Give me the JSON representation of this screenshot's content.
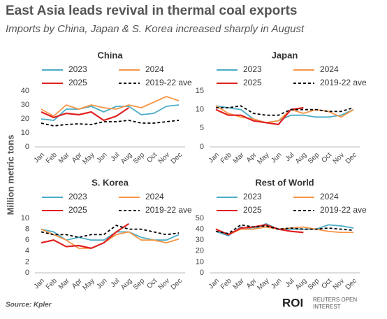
{
  "title": "East Asia leads revival in thermal coal exports",
  "subtitle": "Imports by China, Japan & S. Korea increased sharply in August",
  "ylabel": "Million metric tons",
  "source": "Source: Kpler",
  "logo": {
    "mark": "ROI",
    "line1": "REUTERS OPEN",
    "line2": "INTEREST"
  },
  "chart_data": [
    {
      "type": "line",
      "title": "China",
      "categories": [
        "Jan",
        "Feb",
        "Mar",
        "Apr",
        "May",
        "Jun",
        "Jul",
        "Aug",
        "Sep",
        "Oct",
        "Nov",
        "Dec"
      ],
      "ylim": [
        0,
        40
      ],
      "yticks": [
        0,
        10,
        20,
        30,
        40
      ],
      "grid": false,
      "series": [
        {
          "name": "2023",
          "color": "#4bacc6",
          "values": [
            20,
            19,
            27,
            27,
            29,
            25,
            29,
            29,
            23,
            24,
            29,
            30
          ]
        },
        {
          "name": "2024",
          "color": "#f79646",
          "values": [
            27,
            22,
            30,
            27,
            30,
            28,
            27,
            30,
            28,
            32,
            36,
            33
          ]
        },
        {
          "name": "2025",
          "color": "#e02020",
          "values": [
            25,
            21,
            24,
            23,
            25,
            19,
            22,
            28,
            null,
            null,
            null,
            null
          ]
        },
        {
          "name": "2019-22 ave",
          "color": "#000000",
          "dashed": true,
          "values": [
            17,
            15,
            16,
            16.5,
            16,
            18,
            18,
            19,
            17,
            17,
            18,
            19
          ]
        }
      ]
    },
    {
      "type": "line",
      "title": "Japan",
      "categories": [
        "Jan",
        "Feb",
        "Mar",
        "Apr",
        "May",
        "Jun",
        "Jul",
        "Aug",
        "Sep",
        "Oct",
        "Nov",
        "Dec"
      ],
      "ylim": [
        0,
        15
      ],
      "yticks": [
        0,
        5,
        10,
        15
      ],
      "grid": false,
      "series": [
        {
          "name": "2023",
          "color": "#4bacc6",
          "values": [
            11,
            10.5,
            10,
            7.5,
            6.5,
            7,
            8.5,
            8.5,
            8,
            8,
            8.5,
            10
          ]
        },
        {
          "name": "2024",
          "color": "#f79646",
          "values": [
            11,
            9,
            8,
            7.5,
            6.5,
            7,
            10,
            9,
            10,
            9.5,
            8,
            10
          ]
        },
        {
          "name": "2025",
          "color": "#e02020",
          "values": [
            10,
            8.5,
            8.5,
            7,
            6.5,
            6,
            10,
            10.5,
            null,
            null,
            null,
            null
          ]
        },
        {
          "name": "2019-22 ave",
          "color": "#000000",
          "dashed": true,
          "values": [
            10.5,
            10.5,
            11,
            9,
            8.5,
            8.5,
            10,
            10,
            10,
            9.5,
            9.5,
            10.5
          ]
        }
      ]
    },
    {
      "type": "line",
      "title": "S. Korea",
      "categories": [
        "Jan",
        "Feb",
        "Mar",
        "Apr",
        "May",
        "Jun",
        "Jul",
        "Aug",
        "Sep",
        "Oct",
        "Nov",
        "Dec"
      ],
      "ylim": [
        0,
        10
      ],
      "yticks": [
        0,
        2,
        4,
        6,
        8,
        10
      ],
      "grid": false,
      "series": [
        {
          "name": "2023",
          "color": "#4bacc6",
          "values": [
            8,
            7.5,
            6,
            6.5,
            6,
            6,
            7.5,
            7.5,
            6.5,
            6,
            6,
            7
          ]
        },
        {
          "name": "2024",
          "color": "#f79646",
          "values": [
            8,
            7,
            6,
            4.5,
            4.5,
            5.5,
            7,
            7.5,
            6,
            6,
            5.5,
            6.2
          ]
        },
        {
          "name": "2025",
          "color": "#e02020",
          "values": [
            5.5,
            6,
            4.8,
            5,
            4.5,
            5.5,
            7.5,
            9,
            null,
            null,
            null,
            null
          ]
        },
        {
          "name": "2019-22 ave",
          "color": "#000000",
          "dashed": true,
          "values": [
            7.5,
            7,
            7,
            6.5,
            7,
            7,
            8.7,
            8,
            8,
            7.5,
            7,
            7.3
          ]
        }
      ]
    },
    {
      "type": "line",
      "title": "Rest of World",
      "categories": [
        "Jan",
        "Feb",
        "Mar",
        "Apr",
        "May",
        "Jun",
        "Jul",
        "Aug",
        "Sep",
        "Oct",
        "Nov",
        "Dec"
      ],
      "ylim": [
        0,
        50
      ],
      "yticks": [
        0,
        10,
        20,
        30,
        40,
        50
      ],
      "grid": false,
      "series": [
        {
          "name": "2023",
          "color": "#4bacc6",
          "values": [
            38,
            34,
            42,
            40,
            45,
            40,
            40,
            40,
            40,
            44,
            43,
            41
          ]
        },
        {
          "name": "2024",
          "color": "#f79646",
          "values": [
            40,
            35,
            40,
            40,
            42,
            40,
            41,
            42,
            40,
            38,
            37,
            37
          ]
        },
        {
          "name": "2025",
          "color": "#e02020",
          "values": [
            40,
            35,
            41,
            42,
            44,
            40,
            38,
            37,
            null,
            null,
            null,
            null
          ]
        },
        {
          "name": "2019-22 ave",
          "color": "#000000",
          "dashed": true,
          "values": [
            38,
            36,
            44,
            42,
            43,
            40,
            41,
            40,
            40,
            41,
            40,
            39
          ]
        }
      ]
    }
  ]
}
